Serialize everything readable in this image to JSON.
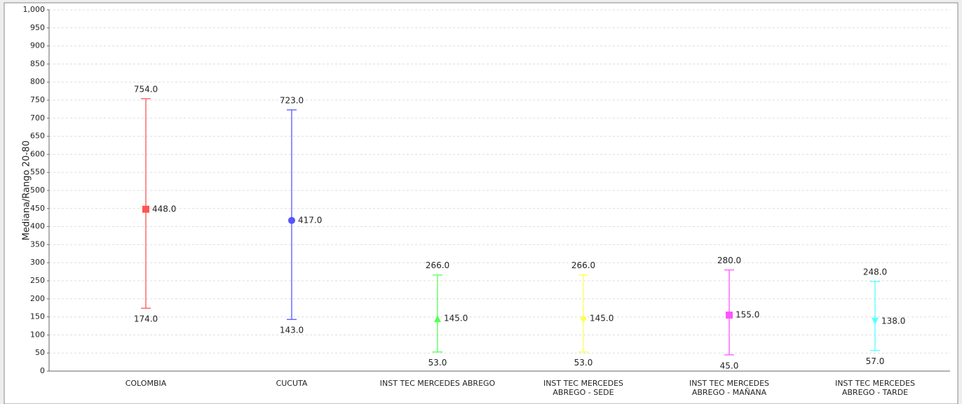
{
  "chart_data": {
    "type": "median-range",
    "y_label": "Mediana/Rango 20-80",
    "categories": [
      [
        "COLOMBIA"
      ],
      [
        "CUCUTA"
      ],
      [
        "INST TEC MERCEDES ABREGO"
      ],
      [
        "INST TEC MERCEDES",
        "ABREGO - SEDE"
      ],
      [
        "INST TEC MERCEDES",
        "ABREGO - MAÑANA"
      ],
      [
        "INST TEC MERCEDES",
        "ABREGO - TARDE"
      ]
    ],
    "values": [
      448,
      417,
      145,
      145,
      155,
      138
    ],
    "value_labels": [
      "448.0",
      "417.0",
      "145.0",
      "145.0",
      "155.0",
      "138.0"
    ],
    "low": [
      174,
      143,
      53,
      53,
      45,
      57
    ],
    "low_labels": [
      "174.0",
      "143.0",
      "53.0",
      "53.0",
      "45.0",
      "57.0"
    ],
    "high": [
      754,
      723,
      266,
      266,
      280,
      248
    ],
    "high_labels": [
      "754.0",
      "723.0",
      "266.0",
      "266.0",
      "280.0",
      "248.0"
    ],
    "colors": [
      "#ff5555",
      "#5555ff",
      "#55ff55",
      "#ffff55",
      "#ff55ff",
      "#55ffff"
    ],
    "markers": [
      "square",
      "circle",
      "triangle-up",
      "diamond",
      "square",
      "triangle-down"
    ],
    "ylim": [
      0,
      1000
    ],
    "yticks": [
      0,
      50,
      100,
      150,
      200,
      250,
      300,
      350,
      400,
      450,
      500,
      550,
      600,
      650,
      700,
      750,
      800,
      850,
      900,
      950,
      {
        "value": 1000,
        "label": "1,000"
      }
    ],
    "grid": true
  }
}
